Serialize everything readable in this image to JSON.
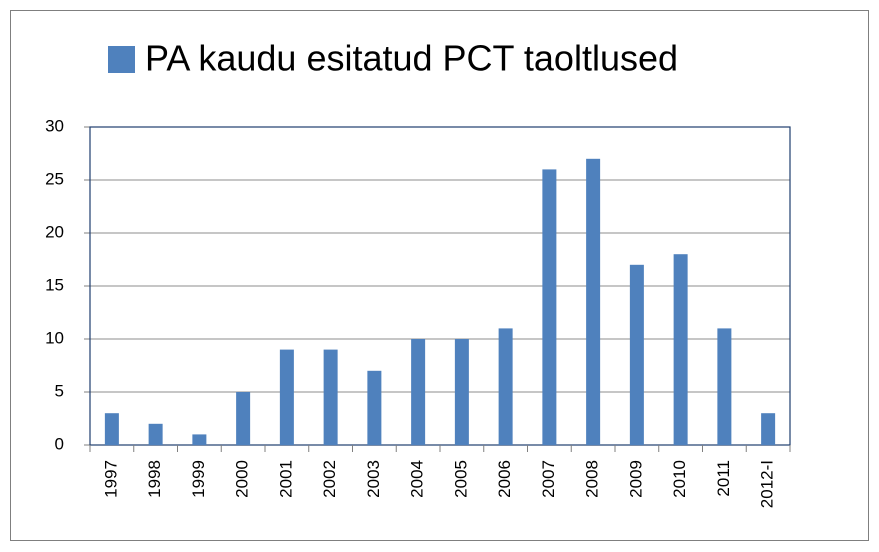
{
  "chart_data": {
    "type": "bar",
    "categories": [
      "1997",
      "1998",
      "1999",
      "2000",
      "2001",
      "2002",
      "2003",
      "2004",
      "2005",
      "2006",
      "2007",
      "2008",
      "2009",
      "2010",
      "2011",
      "2012-I"
    ],
    "series": [
      {
        "name": "PA kaudu esitatud PCT taoltlused",
        "color": "#4f81bd",
        "values": [
          3,
          2,
          1,
          5,
          9,
          9,
          7,
          10,
          10,
          11,
          26,
          27,
          17,
          18,
          11,
          3
        ]
      }
    ],
    "ylim": [
      0,
      30
    ],
    "yticks": [
      0,
      5,
      10,
      15,
      20,
      25,
      30
    ],
    "grid": true,
    "legend": "top"
  }
}
